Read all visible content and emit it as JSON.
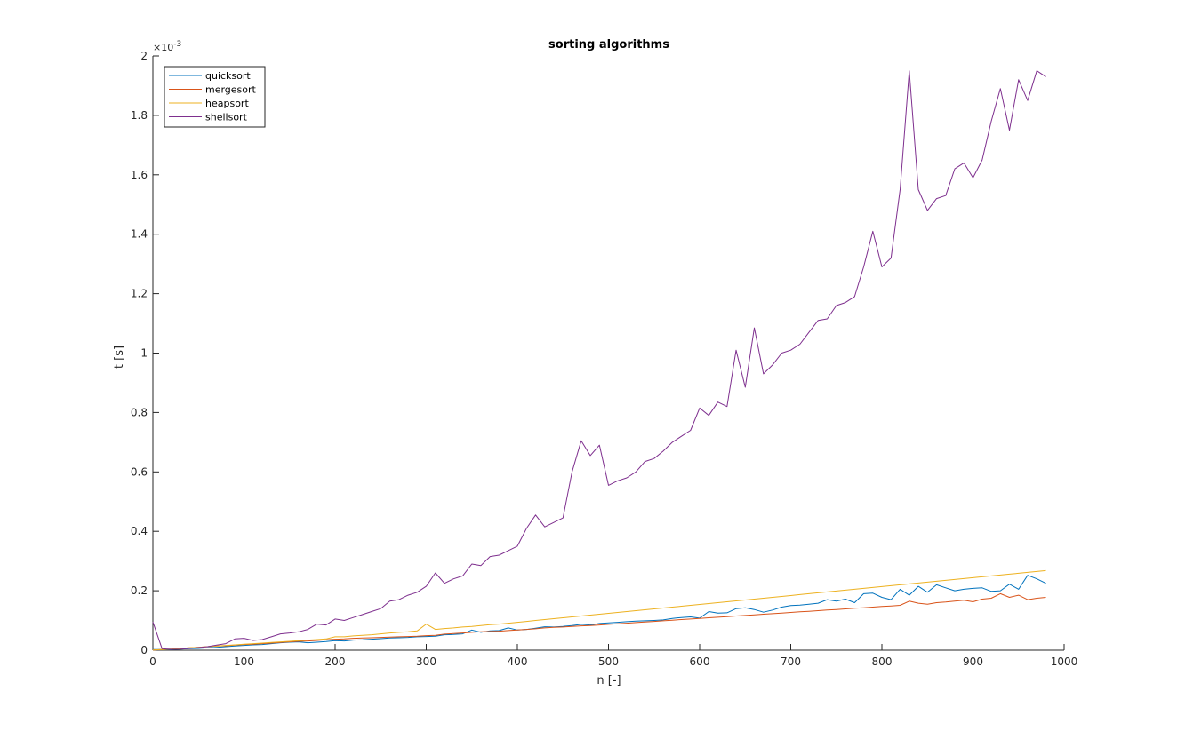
{
  "chart_data": {
    "type": "line",
    "title": "sorting algorithms",
    "xlabel": "n [-]",
    "ylabel": "t [s]",
    "y_multiplier": "×10",
    "y_exponent": "-3",
    "xlim": [
      0,
      1000
    ],
    "ylim": [
      0,
      2
    ],
    "xticks": [
      0,
      100,
      200,
      300,
      400,
      500,
      600,
      700,
      800,
      900,
      1000
    ],
    "yticks": [
      0,
      0.2,
      0.4,
      0.6,
      0.8,
      1,
      1.2,
      1.4,
      1.6,
      1.8,
      2
    ],
    "xtick_labels": [
      "0",
      "100",
      "200",
      "300",
      "400",
      "500",
      "600",
      "700",
      "800",
      "900",
      "1000"
    ],
    "ytick_labels": [
      "0",
      "0.2",
      "0.4",
      "0.6",
      "0.8",
      "1",
      "1.2",
      "1.4",
      "1.6",
      "1.8",
      "2"
    ],
    "grid": false,
    "legend_position": "top-left",
    "x": [
      0,
      10,
      20,
      30,
      40,
      50,
      60,
      70,
      80,
      90,
      100,
      110,
      120,
      130,
      140,
      150,
      160,
      170,
      180,
      190,
      200,
      210,
      220,
      230,
      240,
      250,
      260,
      270,
      280,
      290,
      300,
      310,
      320,
      330,
      340,
      350,
      360,
      370,
      380,
      390,
      400,
      410,
      420,
      430,
      440,
      450,
      460,
      470,
      480,
      490,
      500,
      510,
      520,
      530,
      540,
      550,
      560,
      570,
      580,
      590,
      600,
      610,
      620,
      630,
      640,
      650,
      660,
      670,
      680,
      690,
      700,
      710,
      720,
      730,
      740,
      750,
      760,
      770,
      780,
      790,
      800,
      810,
      820,
      830,
      840,
      850,
      860,
      870,
      880,
      890,
      900,
      910,
      920,
      930,
      940,
      950,
      960,
      970,
      980
    ],
    "series": [
      {
        "name": "quicksort",
        "color": "#0072BD",
        "values": [
          0.002,
          0.002,
          0.002,
          0.004,
          0.005,
          0.006,
          0.008,
          0.01,
          0.012,
          0.014,
          0.016,
          0.018,
          0.019,
          0.022,
          0.025,
          0.027,
          0.028,
          0.025,
          0.027,
          0.029,
          0.032,
          0.031,
          0.034,
          0.035,
          0.037,
          0.039,
          0.041,
          0.042,
          0.043,
          0.045,
          0.046,
          0.047,
          0.052,
          0.053,
          0.055,
          0.068,
          0.06,
          0.065,
          0.066,
          0.075,
          0.068,
          0.07,
          0.074,
          0.079,
          0.078,
          0.08,
          0.083,
          0.087,
          0.085,
          0.09,
          0.092,
          0.094,
          0.096,
          0.098,
          0.099,
          0.1,
          0.102,
          0.107,
          0.11,
          0.112,
          0.108,
          0.13,
          0.125,
          0.126,
          0.14,
          0.143,
          0.137,
          0.128,
          0.135,
          0.145,
          0.15,
          0.152,
          0.155,
          0.158,
          0.17,
          0.165,
          0.172,
          0.16,
          0.19,
          0.192,
          0.178,
          0.17,
          0.205,
          0.185,
          0.215,
          0.195,
          0.22,
          0.21,
          0.2,
          0.205,
          0.208,
          0.21,
          0.198,
          0.2,
          0.222,
          0.205,
          0.252,
          0.24,
          0.225
        ]
      },
      {
        "name": "mergesort",
        "color": "#D95319",
        "values": [
          0.001,
          0.002,
          0.004,
          0.006,
          0.008,
          0.01,
          0.012,
          0.014,
          0.015,
          0.017,
          0.019,
          0.02,
          0.022,
          0.024,
          0.026,
          0.028,
          0.03,
          0.031,
          0.033,
          0.035,
          0.037,
          0.038,
          0.04,
          0.041,
          0.042,
          0.043,
          0.044,
          0.045,
          0.046,
          0.047,
          0.049,
          0.05,
          0.054,
          0.056,
          0.058,
          0.06,
          0.062,
          0.063,
          0.064,
          0.066,
          0.068,
          0.07,
          0.072,
          0.075,
          0.077,
          0.078,
          0.08,
          0.082,
          0.083,
          0.085,
          0.087,
          0.089,
          0.091,
          0.093,
          0.095,
          0.097,
          0.099,
          0.101,
          0.103,
          0.105,
          0.107,
          0.109,
          0.111,
          0.113,
          0.115,
          0.117,
          0.119,
          0.121,
          0.123,
          0.125,
          0.127,
          0.129,
          0.131,
          0.133,
          0.135,
          0.137,
          0.139,
          0.141,
          0.143,
          0.145,
          0.147,
          0.149,
          0.151,
          0.165,
          0.158,
          0.155,
          0.16,
          0.162,
          0.165,
          0.168,
          0.163,
          0.172,
          0.175,
          0.19,
          0.178,
          0.185,
          0.17,
          0.175,
          0.178
        ]
      },
      {
        "name": "heapsort",
        "color": "#EDB120",
        "values": [
          0.001,
          0.002,
          0.004,
          0.006,
          0.008,
          0.01,
          0.012,
          0.014,
          0.016,
          0.018,
          0.02,
          0.022,
          0.024,
          0.026,
          0.028,
          0.03,
          0.032,
          0.034,
          0.036,
          0.038,
          0.045,
          0.045,
          0.048,
          0.05,
          0.052,
          0.055,
          0.058,
          0.06,
          0.062,
          0.065,
          0.088,
          0.07,
          0.073,
          0.075,
          0.078,
          0.08,
          0.083,
          0.086,
          0.088,
          0.091,
          0.094,
          0.097,
          0.1,
          0.103,
          0.106,
          0.109,
          0.112,
          0.115,
          0.118,
          0.121,
          0.124,
          0.127,
          0.13,
          0.133,
          0.136,
          0.139,
          0.142,
          0.145,
          0.148,
          0.151,
          0.154,
          0.157,
          0.16,
          0.163,
          0.166,
          0.169,
          0.172,
          0.175,
          0.178,
          0.181,
          0.184,
          0.187,
          0.19,
          0.193,
          0.196,
          0.199,
          0.202,
          0.205,
          0.208,
          0.211,
          0.214,
          0.217,
          0.22,
          0.223,
          0.226,
          0.229,
          0.232,
          0.235,
          0.238,
          0.241,
          0.244,
          0.247,
          0.25,
          0.253,
          0.256,
          0.259,
          0.262,
          0.265,
          0.268
        ]
      },
      {
        "name": "shellsort",
        "color": "#7E2F8E",
        "values": [
          0.095,
          0.005,
          0.003,
          0.004,
          0.006,
          0.009,
          0.012,
          0.017,
          0.022,
          0.038,
          0.04,
          0.033,
          0.036,
          0.045,
          0.055,
          0.058,
          0.062,
          0.07,
          0.088,
          0.085,
          0.105,
          0.1,
          0.11,
          0.12,
          0.13,
          0.14,
          0.165,
          0.17,
          0.185,
          0.195,
          0.215,
          0.26,
          0.225,
          0.24,
          0.25,
          0.29,
          0.285,
          0.315,
          0.32,
          0.335,
          0.35,
          0.41,
          0.455,
          0.415,
          0.43,
          0.445,
          0.6,
          0.705,
          0.655,
          0.69,
          0.555,
          0.57,
          0.58,
          0.6,
          0.635,
          0.645,
          0.67,
          0.7,
          0.72,
          0.74,
          0.815,
          0.79,
          0.835,
          0.82,
          1.01,
          0.885,
          1.085,
          0.93,
          0.96,
          1.0,
          1.01,
          1.03,
          1.07,
          1.11,
          1.115,
          1.16,
          1.17,
          1.19,
          1.29,
          1.41,
          1.29,
          1.32,
          1.55,
          1.95,
          1.55,
          1.48,
          1.52,
          1.53,
          1.62,
          1.64,
          1.59,
          1.65,
          1.78,
          1.89,
          1.75,
          1.92,
          1.85,
          1.95,
          1.93
        ]
      }
    ]
  }
}
